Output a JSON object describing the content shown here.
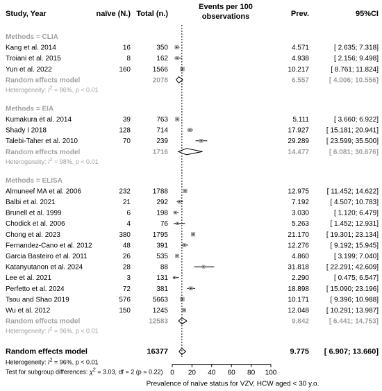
{
  "chart_data": {
    "type": "forest",
    "header": {
      "study": "Study, Year",
      "naive": "naïve (N.)",
      "total": "Total (n.)",
      "events_line1": "Events per 100",
      "events_line2": "observations",
      "prev": "Prev.",
      "ci": "95%CI"
    },
    "axis": {
      "ticks": [
        0,
        20,
        40,
        60,
        80,
        100
      ],
      "xlim": [
        0,
        100
      ],
      "reference_line": 9.775,
      "xlabel": "Prevalence of naïve status for VZV, HCW aged < 30 y.o."
    },
    "groups": [
      {
        "name": "Methods = CLIA",
        "studies": [
          {
            "study": "Kang et al. 2014",
            "naive": "16",
            "total": "350",
            "prev": "4.571",
            "ci": "[ 2.635; 7.318]",
            "est": 4.571,
            "lo": 2.635,
            "hi": 7.318,
            "weight": 1.2
          },
          {
            "study": "Troiani et al. 2015",
            "naive": "8",
            "total": "162",
            "prev": "4.938",
            "ci": "[ 2.156; 9.498]",
            "est": 4.938,
            "lo": 2.156,
            "hi": 9.498,
            "weight": 1.0
          },
          {
            "study": "Yun et al. 2022",
            "naive": "160",
            "total": "1566",
            "prev": "10.217",
            "ci": "[ 8.761; 11.824]",
            "est": 10.217,
            "lo": 8.761,
            "hi": 11.824,
            "weight": 1.4
          }
        ],
        "pooled": {
          "label": "Random effects model",
          "total": "2078",
          "prev": "6.557",
          "ci": "[ 4.006; 10.556]",
          "est": 6.557,
          "lo": 4.006,
          "hi": 10.556
        },
        "heterogeneity": {
          "prefix": "Heterogeneity: ",
          "stat": "I",
          "sup": "2",
          "rest": " = 86%, p < 0.01"
        }
      },
      {
        "name": "Methods = EIA",
        "studies": [
          {
            "study": "Kumakura et al. 2014",
            "naive": "39",
            "total": "763",
            "prev": "5.111",
            "ci": "[ 3.660; 6.922]",
            "est": 5.111,
            "lo": 3.66,
            "hi": 6.922,
            "weight": 1.3
          },
          {
            "study": "Shady I 2018",
            "naive": "128",
            "total": "714",
            "prev": "17.927",
            "ci": "[ 15.181; 20.941]",
            "est": 17.927,
            "lo": 15.181,
            "hi": 20.941,
            "weight": 1.2
          },
          {
            "study": "Talebi-Taher et al. 2010",
            "naive": "70",
            "total": "239",
            "prev": "29.289",
            "ci": "[ 23.599; 35.500]",
            "est": 29.289,
            "lo": 23.599,
            "hi": 35.5,
            "weight": 1.1
          }
        ],
        "pooled": {
          "label": "Random effects model",
          "total": "1716",
          "prev": "14.477",
          "ci": "[ 6.081; 30.676]",
          "est": 14.477,
          "lo": 6.081,
          "hi": 30.676
        },
        "heterogeneity": {
          "prefix": "Heterogeneity: ",
          "stat": "I",
          "sup": "2",
          "rest": " = 98%, p < 0.01"
        }
      },
      {
        "name": "Methods = ELISA",
        "studies": [
          {
            "study": "Almuneef MA et al. 2006",
            "naive": "232",
            "total": "1788",
            "prev": "12.975",
            "ci": "[ 11.452; 14.622]",
            "est": 12.975,
            "lo": 11.452,
            "hi": 14.622,
            "weight": 1.3
          },
          {
            "study": "Balbi et al.  2021",
            "naive": "21",
            "total": "292",
            "prev": "7.192",
            "ci": "[ 4.507; 10.783]",
            "est": 7.192,
            "lo": 4.507,
            "hi": 10.783,
            "weight": 1.0
          },
          {
            "study": "Brunell et al. 1999",
            "naive": "6",
            "total": "198",
            "prev": "3.030",
            "ci": "[ 1.120; 6.479]",
            "est": 3.03,
            "lo": 1.12,
            "hi": 6.479,
            "weight": 0.9
          },
          {
            "study": "Chodick et al. 2006",
            "naive": "4",
            "total": "76",
            "prev": "5.263",
            "ci": "[ 1.452; 12.931]",
            "est": 5.263,
            "lo": 1.452,
            "hi": 12.931,
            "weight": 0.8
          },
          {
            "study": "Chong et al. 2023",
            "naive": "380",
            "total": "1795",
            "prev": "21.170",
            "ci": "[ 19.301; 23.134]",
            "est": 21.17,
            "lo": 19.301,
            "hi": 23.134,
            "weight": 1.3
          },
          {
            "study": "Fernandez-Cano et al. 2012",
            "naive": "48",
            "total": "391",
            "prev": "12.276",
            "ci": "[ 9.192; 15.945]",
            "est": 12.276,
            "lo": 9.192,
            "hi": 15.945,
            "weight": 1.1
          },
          {
            "study": "Garcia Basteiro et al. 2011",
            "naive": "26",
            "total": "535",
            "prev": "4.860",
            "ci": "[ 3.199; 7.040]",
            "est": 4.86,
            "lo": 3.199,
            "hi": 7.04,
            "weight": 1.1
          },
          {
            "study": "Katanyutanon et al. 2024",
            "naive": "28",
            "total": "88",
            "prev": "31.818",
            "ci": "[ 22.291; 42.609]",
            "est": 31.818,
            "lo": 22.291,
            "hi": 42.609,
            "weight": 0.9
          },
          {
            "study": "Lee et al. 2021",
            "naive": "3",
            "total": "131",
            "prev": "2.290",
            "ci": "[ 0.475; 6.547]",
            "est": 2.29,
            "lo": 0.475,
            "hi": 6.547,
            "weight": 0.8
          },
          {
            "study": "Perfetto et al. 2024",
            "naive": "72",
            "total": "381",
            "prev": "18.898",
            "ci": "[ 15.090; 23.196]",
            "est": 18.898,
            "lo": 15.09,
            "hi": 23.196,
            "weight": 1.1
          },
          {
            "study": "Tsou and Shao 2019",
            "naive": "576",
            "total": "5663",
            "prev": "10.171",
            "ci": "[ 9.396; 10.988]",
            "est": 10.171,
            "lo": 9.396,
            "hi": 10.988,
            "weight": 1.4
          },
          {
            "study": "Wu et al. 2012",
            "naive": "150",
            "total": "1245",
            "prev": "12.048",
            "ci": "[ 10.291; 13.987]",
            "est": 12.048,
            "lo": 10.291,
            "hi": 13.987,
            "weight": 1.2
          }
        ],
        "pooled": {
          "label": "Random effects model",
          "total": "12583",
          "prev": "9.842",
          "ci": "[ 6.441; 14.753]",
          "est": 9.842,
          "lo": 6.441,
          "hi": 14.753
        },
        "heterogeneity": {
          "prefix": "Heterogeneity: ",
          "stat": "I",
          "sup": "2",
          "rest": " = 96%, p < 0.01"
        }
      }
    ],
    "overall": {
      "label": "Random effects model",
      "total": "16377",
      "prev": "9.775",
      "ci": "[ 6.907; 13.660]",
      "est": 9.775,
      "lo": 6.907,
      "hi": 13.66,
      "heterogeneity": {
        "prefix": "Heterogeneity: ",
        "stat": "I",
        "sup": "2",
        "rest": " = 96%, p < 0.01"
      },
      "subgroup_test": {
        "prefix": "Test for subgroup differences: ",
        "stat": "χ",
        "sup": "2",
        "rest": " = 3.03, df = 2 (p = 0.22)"
      }
    },
    "colors": {
      "text": "#000000",
      "pooled_gray": "#a0a0a0",
      "square_gray": "#b0b0b0",
      "diamond_fill": "#ffffff"
    }
  }
}
